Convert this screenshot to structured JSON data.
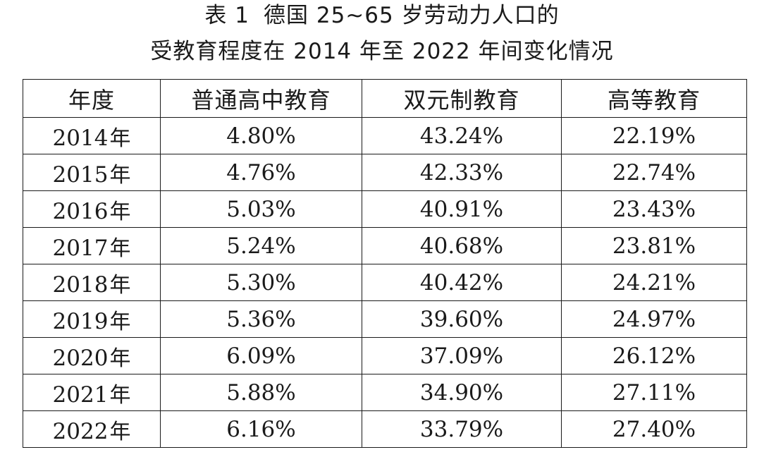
{
  "title": {
    "label": "表 1",
    "line1": "德国 25~65 岁劳动力人口的",
    "line2": "受教育程度在 2014 年至 2022 年间变化情况"
  },
  "table": {
    "headers": [
      "年度",
      "普通高中教育",
      "双元制教育",
      "高等教育"
    ],
    "year_unit": "年",
    "rows": [
      {
        "year": "2014",
        "general": "4.80%",
        "dual": "43.24%",
        "higher": "22.19%"
      },
      {
        "year": "2015",
        "general": "4.76%",
        "dual": "42.33%",
        "higher": "22.74%"
      },
      {
        "year": "2016",
        "general": "5.03%",
        "dual": "40.91%",
        "higher": "23.43%"
      },
      {
        "year": "2017",
        "general": "5.24%",
        "dual": "40.68%",
        "higher": "23.81%"
      },
      {
        "year": "2018",
        "general": "5.30%",
        "dual": "40.42%",
        "higher": "24.21%"
      },
      {
        "year": "2019",
        "general": "5.36%",
        "dual": "39.60%",
        "higher": "24.97%"
      },
      {
        "year": "2020",
        "general": "6.09%",
        "dual": "37.09%",
        "higher": "26.12%"
      },
      {
        "year": "2021",
        "general": "5.88%",
        "dual": "34.90%",
        "higher": "27.11%"
      },
      {
        "year": "2022",
        "general": "6.16%",
        "dual": "33.79%",
        "higher": "27.40%"
      }
    ]
  }
}
